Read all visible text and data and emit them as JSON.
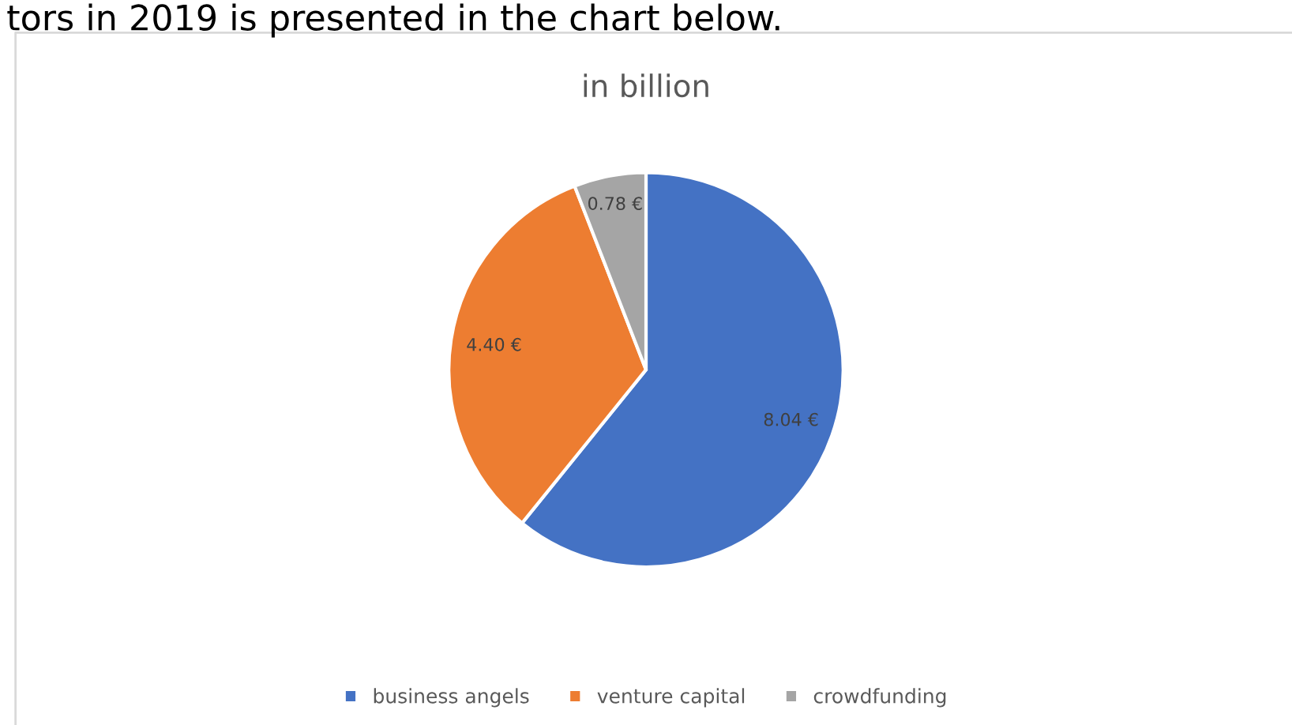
{
  "chart_data": {
    "type": "pie",
    "title": "in billion",
    "categories": [
      "business angels",
      "venture capital",
      "crowdfunding"
    ],
    "values": [
      8.04,
      4.4,
      0.78
    ],
    "value_labels": [
      "8.04 €",
      "4.40 €",
      "0.78 €"
    ],
    "colors": [
      "#4472c4",
      "#ed7d31",
      "#a5a5a5"
    ],
    "legend": "bottom",
    "annotations": [
      "tors in 2019 is presented in the chart below."
    ]
  }
}
